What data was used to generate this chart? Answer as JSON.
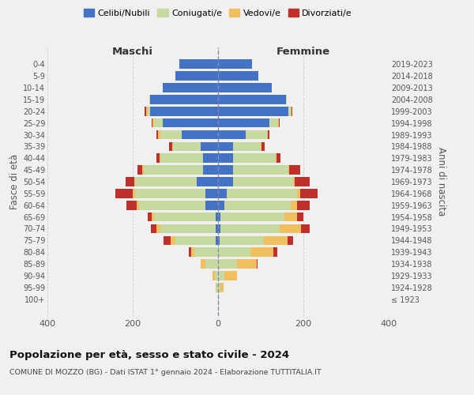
{
  "age_groups": [
    "100+",
    "95-99",
    "90-94",
    "85-89",
    "80-84",
    "75-79",
    "70-74",
    "65-69",
    "60-64",
    "55-59",
    "50-54",
    "45-49",
    "40-44",
    "35-39",
    "30-34",
    "25-29",
    "20-24",
    "15-19",
    "10-14",
    "5-9",
    "0-4"
  ],
  "birth_years": [
    "≤ 1923",
    "1924-1928",
    "1929-1933",
    "1934-1938",
    "1939-1943",
    "1944-1948",
    "1949-1953",
    "1954-1958",
    "1959-1963",
    "1964-1968",
    "1969-1973",
    "1974-1978",
    "1979-1983",
    "1984-1988",
    "1989-1993",
    "1994-1998",
    "1999-2003",
    "2004-2008",
    "2009-2013",
    "2014-2018",
    "2019-2023"
  ],
  "male": {
    "celibi": [
      0,
      0,
      0,
      0,
      0,
      5,
      5,
      5,
      30,
      30,
      50,
      35,
      35,
      40,
      85,
      130,
      160,
      160,
      130,
      100,
      90
    ],
    "coniugati": [
      0,
      3,
      8,
      30,
      55,
      95,
      130,
      145,
      155,
      165,
      145,
      140,
      100,
      65,
      50,
      20,
      5,
      2,
      0,
      0,
      0
    ],
    "vedovi": [
      0,
      2,
      5,
      10,
      8,
      12,
      10,
      5,
      5,
      5,
      2,
      2,
      2,
      2,
      5,
      3,
      3,
      0,
      0,
      0,
      0
    ],
    "divorziati": [
      0,
      0,
      0,
      0,
      5,
      15,
      12,
      10,
      25,
      40,
      20,
      12,
      8,
      8,
      5,
      3,
      5,
      0,
      0,
      0,
      0
    ]
  },
  "female": {
    "nubili": [
      0,
      0,
      0,
      0,
      0,
      3,
      5,
      5,
      15,
      20,
      35,
      35,
      35,
      35,
      65,
      120,
      165,
      160,
      125,
      95,
      80
    ],
    "coniugate": [
      0,
      5,
      15,
      45,
      75,
      105,
      140,
      150,
      155,
      165,
      140,
      130,
      100,
      65,
      50,
      20,
      5,
      2,
      0,
      0,
      0
    ],
    "vedove": [
      1,
      8,
      30,
      45,
      55,
      55,
      50,
      30,
      15,
      8,
      5,
      2,
      2,
      2,
      2,
      2,
      2,
      0,
      0,
      0,
      0
    ],
    "divorziate": [
      0,
      0,
      0,
      2,
      8,
      12,
      20,
      15,
      30,
      40,
      35,
      25,
      10,
      8,
      3,
      3,
      2,
      0,
      0,
      0,
      0
    ]
  },
  "colors": {
    "celibi": "#4472c4",
    "coniugati": "#c5d9a0",
    "vedovi": "#f0c060",
    "divorziati": "#c0302a"
  },
  "title": "Popolazione per età, sesso e stato civile - 2024",
  "subtitle": "COMUNE DI MOZZO (BG) - Dati ISTAT 1° gennaio 2024 - Elaborazione TUTTITALIA.IT",
  "xlabel_left": "Maschi",
  "xlabel_right": "Femmine",
  "ylabel_left": "Fasce di età",
  "ylabel_right": "Anni di nascita",
  "legend_labels": [
    "Celibi/Nubili",
    "Coniugati/e",
    "Vedovi/e",
    "Divorziati/e"
  ],
  "xlim": 400,
  "background_color": "#f0f0f0"
}
